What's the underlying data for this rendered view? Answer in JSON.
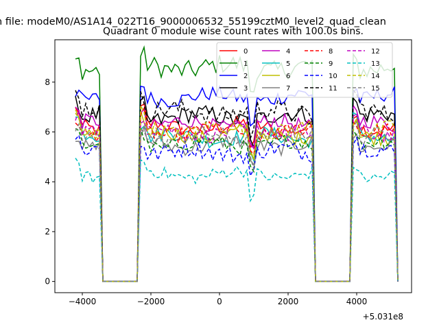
{
  "suptitle": "n file: modeM0/AS1A14_022T16_9000006532_55199cztM0_level2_quad_clean",
  "chart_data": {
    "type": "line",
    "title": "Quadrant 0 module wise count rates with 100.0s bins.",
    "xlabel": "",
    "ylabel": "",
    "x_offset_label": "+5.031e8",
    "xlim": [
      -4800,
      5600
    ],
    "ylim": [
      -0.45,
      9.7
    ],
    "xticks": [
      -4000,
      -2000,
      0,
      2000,
      4000
    ],
    "yticks": [
      0,
      2,
      4,
      6,
      8
    ],
    "grid": false,
    "legend_location": "upper-right",
    "legend_ncol": 4,
    "segments": [
      {
        "x0": -4200,
        "x1": -3500
      },
      {
        "x0": -2300,
        "x1": 2700
      },
      {
        "x0": 3900,
        "x1": 5100
      }
    ],
    "series": [
      {
        "name": "0",
        "color": "#ff0000",
        "dash": "solid",
        "level": 6.2,
        "edge": 0.6,
        "amp": 0.3
      },
      {
        "name": "1",
        "color": "#008000",
        "dash": "solid",
        "level": 8.6,
        "edge": 0.3,
        "amp": 0.4
      },
      {
        "name": "2",
        "color": "#0000ff",
        "dash": "solid",
        "level": 7.4,
        "edge": 0.4,
        "amp": 0.3
      },
      {
        "name": "3",
        "color": "#000000",
        "dash": "solid",
        "level": 6.6,
        "edge": 0.6,
        "amp": 0.35
      },
      {
        "name": "4",
        "color": "#bf00bf",
        "dash": "solid",
        "level": 6.3,
        "edge": 0.5,
        "amp": 0.3
      },
      {
        "name": "5",
        "color": "#00bfbf",
        "dash": "solid",
        "level": 5.8,
        "edge": 0.6,
        "amp": 0.3
      },
      {
        "name": "6",
        "color": "#bfbf00",
        "dash": "solid",
        "level": 5.9,
        "edge": 0.6,
        "amp": 0.3
      },
      {
        "name": "7",
        "color": "#808080",
        "dash": "solid",
        "level": 5.5,
        "edge": 0.4,
        "amp": 0.3
      },
      {
        "name": "8",
        "color": "#ff0000",
        "dash": "dashed",
        "level": 6.0,
        "edge": 0.6,
        "amp": 0.3
      },
      {
        "name": "9",
        "color": "#008000",
        "dash": "dashed",
        "level": 5.5,
        "edge": 0.5,
        "amp": 0.3
      },
      {
        "name": "10",
        "color": "#0000ff",
        "dash": "dashed",
        "level": 5.2,
        "edge": 0.5,
        "amp": 0.35
      },
      {
        "name": "11",
        "color": "#000000",
        "dash": "dashed",
        "level": 6.8,
        "edge": 0.6,
        "amp": 0.4
      },
      {
        "name": "12",
        "color": "#bf00bf",
        "dash": "dashed",
        "level": 6.0,
        "edge": 0.6,
        "amp": 0.3
      },
      {
        "name": "13",
        "color": "#00bfbf",
        "dash": "dashed",
        "level": 4.3,
        "edge": 0.4,
        "amp": 0.25
      },
      {
        "name": "14",
        "color": "#bfbf00",
        "dash": "dashed",
        "level": 6.1,
        "edge": 0.6,
        "amp": 0.3
      },
      {
        "name": "15",
        "color": "#808080",
        "dash": "dashed",
        "level": 5.8,
        "edge": 0.5,
        "amp": 0.3
      }
    ]
  }
}
